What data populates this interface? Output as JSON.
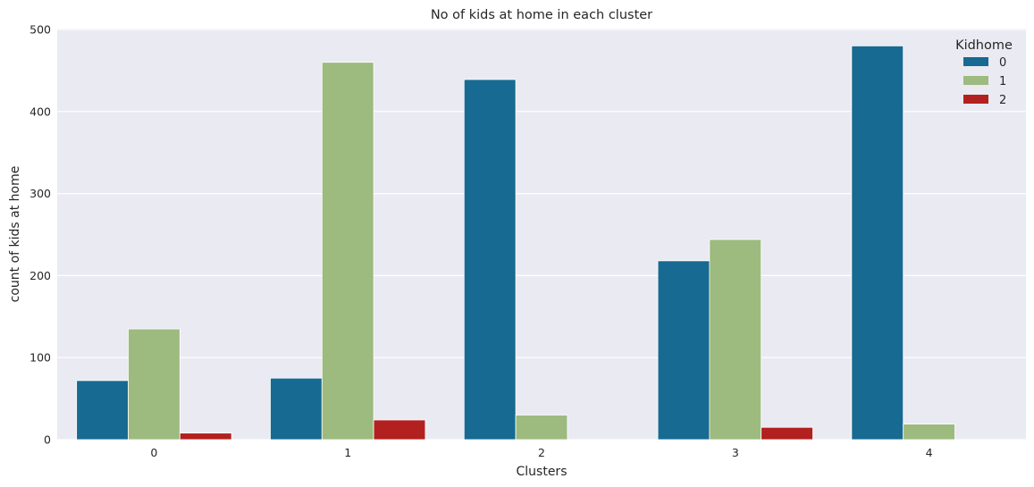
{
  "chart_data": {
    "type": "bar",
    "title": "No of kids at home in each cluster",
    "xlabel": "Clusters",
    "ylabel": "count of kids at home",
    "categories": [
      "0",
      "1",
      "2",
      "3",
      "4"
    ],
    "ylim": [
      0,
      500
    ],
    "yticks": [
      "0",
      "100",
      "200",
      "300",
      "400",
      "500"
    ],
    "grid": true,
    "legend": {
      "title": "Kidhome",
      "placement": "top-right"
    },
    "series": [
      {
        "name": "0",
        "color": "#176a91",
        "values": [
          72,
          75,
          439,
          218,
          480
        ]
      },
      {
        "name": "1",
        "color": "#9dba7f",
        "values": [
          135,
          460,
          30,
          244,
          19
        ]
      },
      {
        "name": "2",
        "color": "#b2201f",
        "values": [
          8,
          24,
          null,
          15,
          null
        ]
      }
    ]
  }
}
